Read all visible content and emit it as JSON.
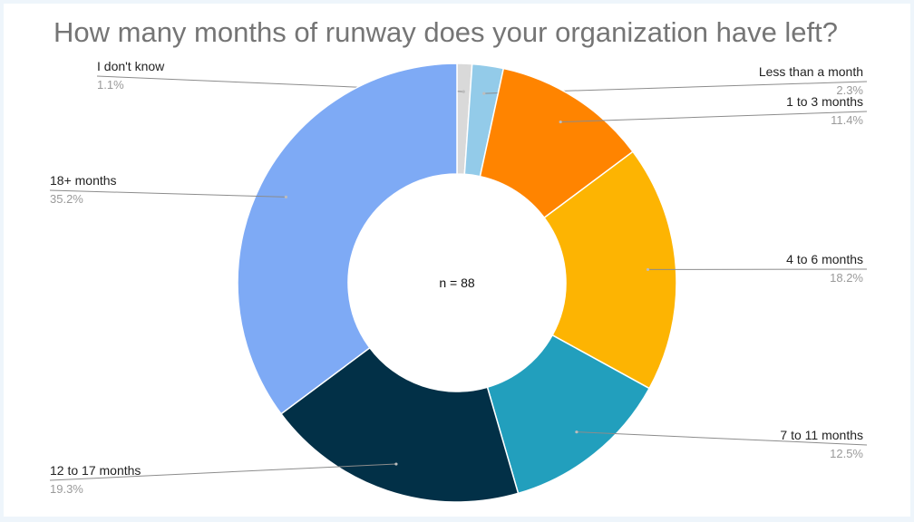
{
  "chart_data": {
    "type": "pie",
    "title": "How many months of runway does your organization have left?",
    "center_label": "n = 88",
    "slices": [
      {
        "label": "I don't know",
        "percent_label": "1.1%",
        "value": 1.1,
        "color": "#d9d9d9",
        "side": "left"
      },
      {
        "label": "Less than a month",
        "percent_label": "2.3%",
        "value": 2.3,
        "color": "#93cbe9",
        "side": "right"
      },
      {
        "label": "1 to 3 months",
        "percent_label": "11.4%",
        "value": 11.4,
        "color": "#ff8400",
        "side": "right"
      },
      {
        "label": "4 to 6 months",
        "percent_label": "18.2%",
        "value": 18.2,
        "color": "#fdb402",
        "side": "right"
      },
      {
        "label": "7 to 11 months",
        "percent_label": "12.5%",
        "value": 12.5,
        "color": "#229fbd",
        "side": "right"
      },
      {
        "label": "12 to 17 months",
        "percent_label": "19.3%",
        "value": 19.3,
        "color": "#023047",
        "side": "left"
      },
      {
        "label": "18+ months",
        "percent_label": "35.2%",
        "value": 35.2,
        "color": "#7eaaf5",
        "side": "left"
      }
    ]
  }
}
